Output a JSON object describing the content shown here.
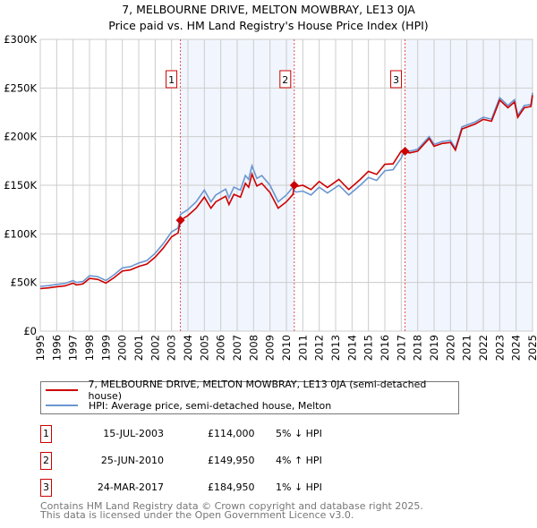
{
  "chart_data": {
    "type": "line",
    "title": "7, MELBOURNE DRIVE, MELTON MOWBRAY, LE13 0JA",
    "subtitle": "Price paid vs. HM Land Registry's House Price Index (HPI)",
    "xlim": [
      1995,
      2025
    ],
    "ylim": [
      0,
      300000
    ],
    "y_ticks": [
      {
        "v": 0,
        "label": "£0"
      },
      {
        "v": 50000,
        "label": "£50K"
      },
      {
        "v": 100000,
        "label": "£100K"
      },
      {
        "v": 150000,
        "label": "£150K"
      },
      {
        "v": 200000,
        "label": "£200K"
      },
      {
        "v": 250000,
        "label": "£250K"
      },
      {
        "v": 300000,
        "label": "£300K"
      }
    ],
    "x_ticks": [
      "1995",
      "1996",
      "1997",
      "1998",
      "1999",
      "2000",
      "2001",
      "2002",
      "2003",
      "2004",
      "2005",
      "2006",
      "2007",
      "2008",
      "2009",
      "2010",
      "2011",
      "2012",
      "2013",
      "2014",
      "2015",
      "2016",
      "2017",
      "2018",
      "2019",
      "2020",
      "2021",
      "2022",
      "2023",
      "2024",
      "2025"
    ],
    "grid": true,
    "shaded_ranges": [
      [
        2003.54,
        2010.48
      ],
      [
        2017.23,
        2025
      ]
    ],
    "series": [
      {
        "name": "7, MELBOURNE DRIVE, MELTON MOWBRAY, LE13 0JA (semi-detached house)",
        "color": "#cc0000",
        "points": [
          [
            1995,
            43.7
          ],
          [
            1995.5,
            44.5
          ],
          [
            1996,
            45.6
          ],
          [
            1996.5,
            46.5
          ],
          [
            1997,
            49.4
          ],
          [
            1997.2,
            47.5
          ],
          [
            1997.6,
            48.5
          ],
          [
            1998,
            54.2
          ],
          [
            1998.5,
            53.2
          ],
          [
            1999,
            49.4
          ],
          [
            1999.5,
            55
          ],
          [
            2000,
            61.8
          ],
          [
            2000.5,
            63
          ],
          [
            2001,
            66.5
          ],
          [
            2001.5,
            69
          ],
          [
            2002,
            76
          ],
          [
            2002.5,
            85.5
          ],
          [
            2003,
            96.9
          ],
          [
            2003.4,
            101
          ],
          [
            2003.54,
            114
          ],
          [
            2004,
            118.8
          ],
          [
            2004.5,
            126.4
          ],
          [
            2005,
            137.8
          ],
          [
            2005.4,
            126.4
          ],
          [
            2005.7,
            133
          ],
          [
            2006.3,
            138.7
          ],
          [
            2006.5,
            130.2
          ],
          [
            2006.8,
            140.6
          ],
          [
            2007.2,
            137.8
          ],
          [
            2007.5,
            152
          ],
          [
            2007.7,
            148
          ],
          [
            2007.9,
            161.5
          ],
          [
            2008.2,
            149.2
          ],
          [
            2008.5,
            152
          ],
          [
            2009,
            142.5
          ],
          [
            2009.5,
            126.4
          ],
          [
            2010,
            133
          ],
          [
            2010.4,
            140.6
          ],
          [
            2010.48,
            149.95
          ],
          [
            2010.6,
            148.7
          ],
          [
            2011,
            150
          ],
          [
            2011.5,
            145.6
          ],
          [
            2012,
            153.9
          ],
          [
            2012.5,
            147.7
          ],
          [
            2013.2,
            156
          ],
          [
            2013.8,
            145.6
          ],
          [
            2014.5,
            156
          ],
          [
            2015,
            164.3
          ],
          [
            2015.5,
            161.2
          ],
          [
            2016,
            171.6
          ],
          [
            2016.5,
            172
          ],
          [
            2017,
            185.1
          ],
          [
            2017.23,
            184.95
          ],
          [
            2017.5,
            183.2
          ],
          [
            2018,
            185.1
          ],
          [
            2018.7,
            198
          ],
          [
            2019,
            190.1
          ],
          [
            2019.5,
            193
          ],
          [
            2020,
            194
          ],
          [
            2020.3,
            186.1
          ],
          [
            2020.7,
            207.9
          ],
          [
            2021.5,
            212.9
          ],
          [
            2022,
            217.8
          ],
          [
            2022.5,
            215.8
          ],
          [
            2023,
            237.6
          ],
          [
            2023.5,
            229.7
          ],
          [
            2023.9,
            235.6
          ],
          [
            2024.1,
            219.8
          ],
          [
            2024.5,
            229.7
          ],
          [
            2024.9,
            231
          ],
          [
            2025,
            242.6
          ]
        ]
      },
      {
        "name": "HPI: Average price, semi-detached house, Melton",
        "color": "#6a96d0",
        "points": [
          [
            1995,
            46
          ],
          [
            1995.5,
            46.8
          ],
          [
            1996,
            48
          ],
          [
            1996.5,
            49
          ],
          [
            1997,
            52
          ],
          [
            1997.2,
            50
          ],
          [
            1997.6,
            51
          ],
          [
            1998,
            57
          ],
          [
            1998.5,
            56
          ],
          [
            1999,
            52
          ],
          [
            1999.5,
            58
          ],
          [
            2000,
            65
          ],
          [
            2000.5,
            66.3
          ],
          [
            2001,
            70
          ],
          [
            2001.5,
            72.6
          ],
          [
            2002,
            80
          ],
          [
            2002.5,
            90
          ],
          [
            2003,
            102
          ],
          [
            2003.4,
            106
          ],
          [
            2003.54,
            120
          ],
          [
            2004,
            125
          ],
          [
            2004.5,
            133
          ],
          [
            2005,
            145
          ],
          [
            2005.4,
            133
          ],
          [
            2005.7,
            140
          ],
          [
            2006.3,
            146
          ],
          [
            2006.5,
            137
          ],
          [
            2006.8,
            148
          ],
          [
            2007.2,
            145
          ],
          [
            2007.5,
            160
          ],
          [
            2007.7,
            156
          ],
          [
            2007.9,
            170
          ],
          [
            2008.2,
            157
          ],
          [
            2008.5,
            160
          ],
          [
            2009,
            150
          ],
          [
            2009.5,
            133
          ],
          [
            2010,
            140
          ],
          [
            2010.4,
            148
          ],
          [
            2010.48,
            144
          ],
          [
            2010.6,
            143
          ],
          [
            2011,
            144
          ],
          [
            2011.5,
            140
          ],
          [
            2012,
            148
          ],
          [
            2012.5,
            142
          ],
          [
            2013.2,
            150
          ],
          [
            2013.8,
            140
          ],
          [
            2014.5,
            150
          ],
          [
            2015,
            158
          ],
          [
            2015.5,
            155
          ],
          [
            2016,
            165
          ],
          [
            2016.5,
            166
          ],
          [
            2017,
            178
          ],
          [
            2017.23,
            186.8
          ],
          [
            2017.5,
            185
          ],
          [
            2018,
            187
          ],
          [
            2018.7,
            200
          ],
          [
            2019,
            192
          ],
          [
            2019.5,
            195
          ],
          [
            2020,
            196
          ],
          [
            2020.3,
            188
          ],
          [
            2020.7,
            210
          ],
          [
            2021.5,
            215
          ],
          [
            2022,
            220
          ],
          [
            2022.5,
            218
          ],
          [
            2023,
            240
          ],
          [
            2023.5,
            232
          ],
          [
            2023.9,
            238
          ],
          [
            2024.1,
            222
          ],
          [
            2024.5,
            232
          ],
          [
            2024.9,
            233
          ],
          [
            2025,
            245
          ]
        ]
      }
    ],
    "sales": [
      {
        "n": "1",
        "x": 2003.54,
        "value": 114000,
        "date": "15-JUL-2003",
        "price": "£114,000",
        "hpi": "5% ↓ HPI"
      },
      {
        "n": "2",
        "x": 2010.48,
        "value": 149950,
        "date": "25-JUN-2010",
        "price": "£149,950",
        "hpi": "4% ↑ HPI"
      },
      {
        "n": "3",
        "x": 2017.23,
        "value": 184950,
        "date": "24-MAR-2017",
        "price": "£184,950",
        "hpi": "1% ↓ HPI"
      }
    ],
    "legend_placement": "bottom"
  },
  "footer": {
    "line1": "Contains HM Land Registry data © Crown copyright and database right 2025.",
    "line2": "This data is licensed under the Open Government Licence v3.0."
  }
}
